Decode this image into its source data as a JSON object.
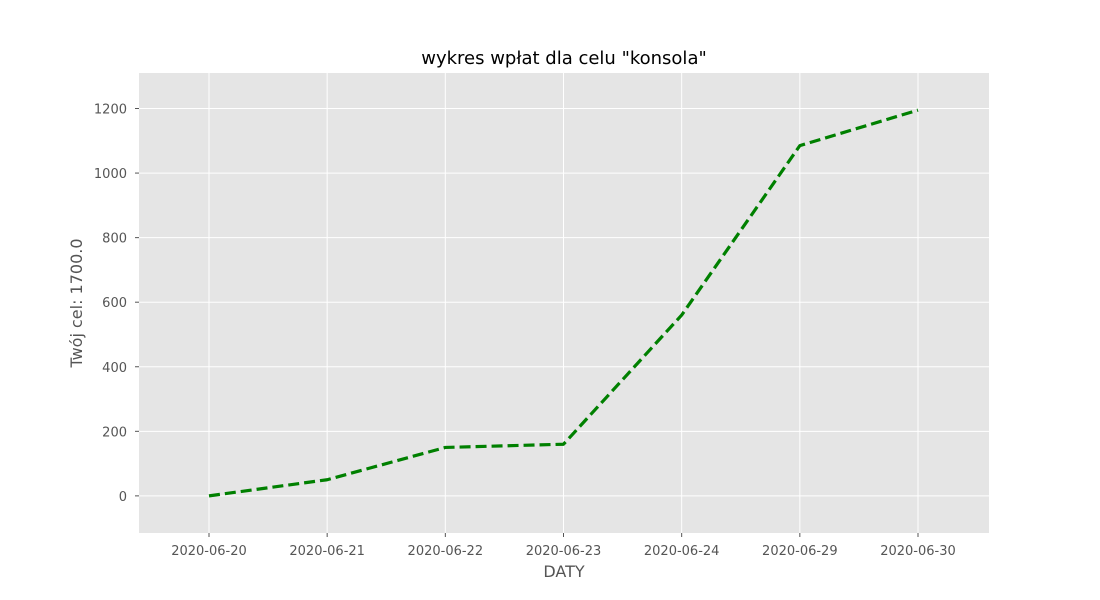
{
  "chart_data": {
    "type": "line",
    "title": "wykres wpłat dla celu \"konsola\"",
    "xlabel": "DATY",
    "ylabel": "Twój cel: 1700.0",
    "categories": [
      "2020-06-20",
      "2020-06-21",
      "2020-06-22",
      "2020-06-23",
      "2020-06-24",
      "2020-06-29",
      "2020-06-30"
    ],
    "series": [
      {
        "values": [
          0,
          50,
          150,
          160,
          560,
          1085,
          1195
        ],
        "color": "#008000",
        "line_style": "dashed"
      }
    ],
    "y_ticks": [
      0,
      200,
      400,
      600,
      800,
      1000,
      1200
    ],
    "y_tick_labels": [
      "0",
      "200",
      "400",
      "600",
      "800",
      "1000",
      "1200"
    ],
    "ylim": [
      -115,
      1310
    ],
    "grid": true,
    "style": "ggplot",
    "background_color": "#e5e5e5",
    "grid_color": "#ffffff"
  }
}
